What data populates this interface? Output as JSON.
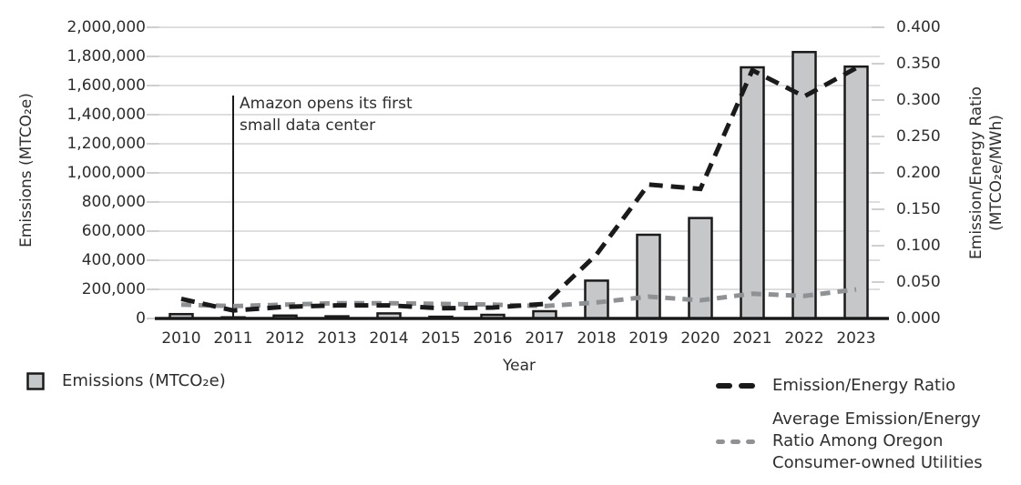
{
  "chart_data": {
    "type": "combo",
    "x": [
      2010,
      2011,
      2012,
      2013,
      2014,
      2015,
      2016,
      2017,
      2018,
      2019,
      2020,
      2021,
      2022,
      2023
    ],
    "xlabel": "Year",
    "left_axis": {
      "label": "Emissions (MTCO₂e)",
      "min": 0,
      "max": 2000000,
      "tick_step": 200000,
      "tick_values": [
        0,
        200000,
        400000,
        600000,
        800000,
        1000000,
        1200000,
        1400000,
        1600000,
        1800000,
        2000000
      ],
      "tick_labels": [
        "0",
        "200,000",
        "400,000",
        "600,000",
        "800,000",
        "1,000,000",
        "1,200,000",
        "1,400,000",
        "1,600,000",
        "1,800,000",
        "2,000,000"
      ]
    },
    "right_axis": {
      "label_line1": "Emission/Energy Ratio",
      "label_line2": "(MTCO₂e/MWh)",
      "min": 0,
      "max": 0.4,
      "tick_step": 0.05,
      "tick_values": [
        0,
        0.05,
        0.1,
        0.15,
        0.2,
        0.25,
        0.3,
        0.35,
        0.4
      ],
      "tick_labels": [
        "0.000",
        "0.050",
        "0.100",
        "0.150",
        "0.200",
        "0.250",
        "0.300",
        "0.350",
        "0.400"
      ]
    },
    "grid": "horizontal",
    "series": [
      {
        "name": "Emissions (MTCO₂e)",
        "type": "bar",
        "axis": "left",
        "values": [
          30000,
          8000,
          20000,
          15000,
          35000,
          12000,
          25000,
          50000,
          260000,
          575000,
          690000,
          1725000,
          1830000,
          1730000
        ]
      },
      {
        "name": "Emission/Energy Ratio",
        "type": "line",
        "dash": "long",
        "axis": "right",
        "values": [
          0.027,
          0.011,
          0.016,
          0.018,
          0.018,
          0.014,
          0.015,
          0.02,
          0.088,
          0.184,
          0.178,
          0.341,
          0.305,
          0.344
        ]
      },
      {
        "name": "Average Emission/Energy Ratio Among Oregon Consumer-owned Utilities",
        "type": "line",
        "dash": "short",
        "axis": "right",
        "values": [
          0.019,
          0.017,
          0.019,
          0.021,
          0.021,
          0.02,
          0.019,
          0.017,
          0.022,
          0.03,
          0.025,
          0.034,
          0.031,
          0.04
        ]
      }
    ],
    "annotation": {
      "year": 2011,
      "line1": "Amazon opens its first",
      "line2": "small data center"
    },
    "legend_position": "bottom"
  },
  "legend": {
    "bar_label": "Emissions (MTCO₂e)",
    "black_line_label": "Emission/Energy Ratio",
    "gray_line_lines": [
      "Average Emission/Energy",
      "Ratio Among Oregon",
      "Consumer-owned Utilities"
    ]
  },
  "colors": {
    "bar_fill": "#c5c7c9",
    "bar_border": "#1a1a1a",
    "black_line": "#1a1a1a",
    "gray_line": "#8f9294",
    "gridline": "#c9c9c9",
    "tick_mark": "#b5b5b5",
    "axis_line": "#1a1a1a",
    "text": "#2e2e2e"
  }
}
